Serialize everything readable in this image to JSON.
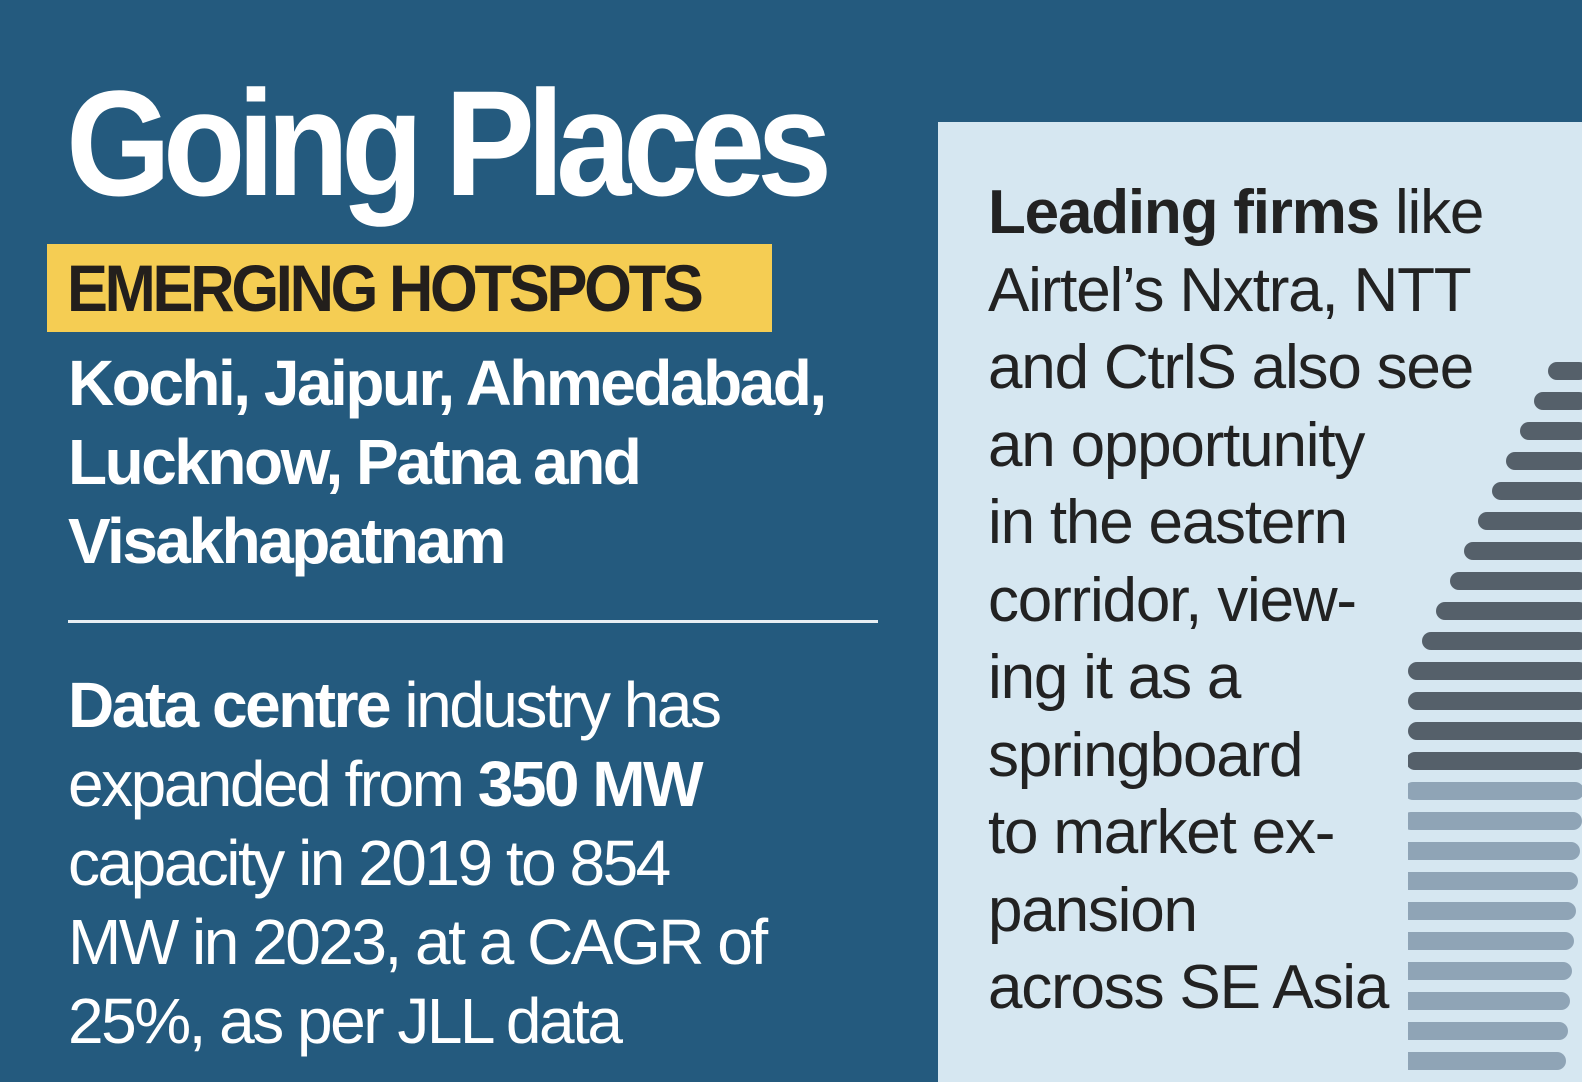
{
  "title": "Going Places",
  "tag": "EMERGING HOTSPOTS",
  "colors": {
    "background": "#245a7e",
    "tag": "#f5cd53",
    "panel": "#d6e7f1"
  },
  "cities_lines": [
    [
      {
        "t": "Kochi, Jaipur, Ahmedabad,",
        "b": true
      }
    ],
    [
      {
        "t": "Lucknow, Patna and",
        "b": true
      }
    ],
    [
      {
        "t": "Visakhapatnam",
        "b": true
      }
    ]
  ],
  "stats_lines": [
    [
      {
        "t": "Data centre",
        "b": true
      },
      {
        "t": " industry has",
        "b": false
      }
    ],
    [
      {
        "t": "expanded from ",
        "b": false
      },
      {
        "t": "350 MW",
        "b": true
      }
    ],
    [
      {
        "t": "capacity in 2019 to 854",
        "b": false
      }
    ],
    [
      {
        "t": "MW in 2023, at a CAGR of",
        "b": false
      }
    ],
    [
      {
        "t": "25%, as per JLL data",
        "b": false
      }
    ]
  ],
  "firms_lines": [
    [
      {
        "t": "Leading firms",
        "b": true
      },
      {
        "t": " like",
        "b": false
      }
    ],
    [
      {
        "t": "Airtel’s Nxtra, NTT",
        "b": false
      }
    ],
    [
      {
        "t": "and CtrlS also see",
        "b": false
      }
    ],
    [
      {
        "t": "an opportunity",
        "b": false
      }
    ],
    [
      {
        "t": "in the eastern",
        "b": false
      }
    ],
    [
      {
        "t": "corridor, view-",
        "b": false
      }
    ],
    [
      {
        "t": "ing it as a",
        "b": false
      }
    ],
    [
      {
        "t": "springboard",
        "b": false
      }
    ],
    [
      {
        "t": "to market ex-",
        "b": false
      }
    ],
    [
      {
        "t": "pansion",
        "b": false
      }
    ],
    [
      {
        "t": "across SE Asia",
        "b": false
      }
    ]
  ],
  "image_icon": "binary-server-tower-icon"
}
